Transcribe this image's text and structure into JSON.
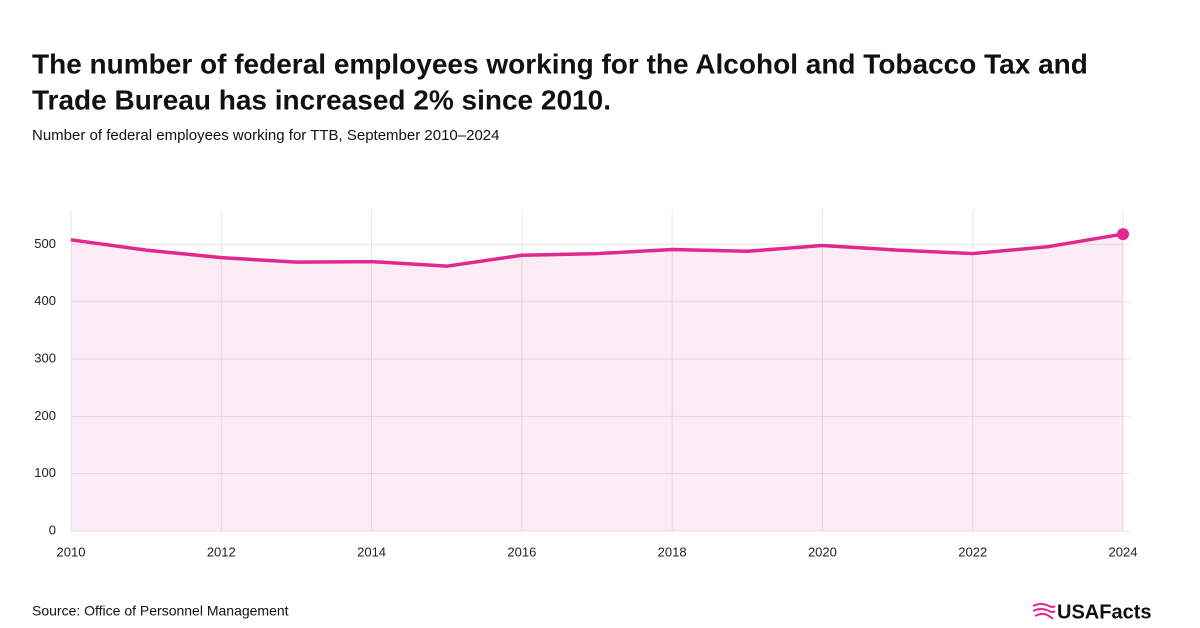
{
  "chart_data": {
    "type": "area",
    "title": [
      "The number of federal employees working for the Alcohol and Tobacco Tax and",
      "Trade Bureau has increased 2% since 2010."
    ],
    "subtitle": "Number of federal employees working for TTB, September 2010–2024",
    "source": "Source: Office of Personnel Management",
    "logo": "USAFacts",
    "x": [
      2010,
      2011,
      2012,
      2013,
      2014,
      2015,
      2016,
      2017,
      2018,
      2019,
      2020,
      2021,
      2022,
      2023,
      2024
    ],
    "values": [
      508,
      490,
      477,
      469,
      470,
      462,
      481,
      484,
      491,
      488,
      498,
      490,
      484,
      496,
      518
    ],
    "color": "#e0288f",
    "xlim": [
      2010,
      2024
    ],
    "xticks": [
      2010,
      2012,
      2014,
      2016,
      2018,
      2020,
      2022,
      2024
    ],
    "ylim": [
      0,
      560
    ],
    "yticks": [
      0,
      100,
      200,
      300,
      400,
      500
    ],
    "grid": true
  }
}
